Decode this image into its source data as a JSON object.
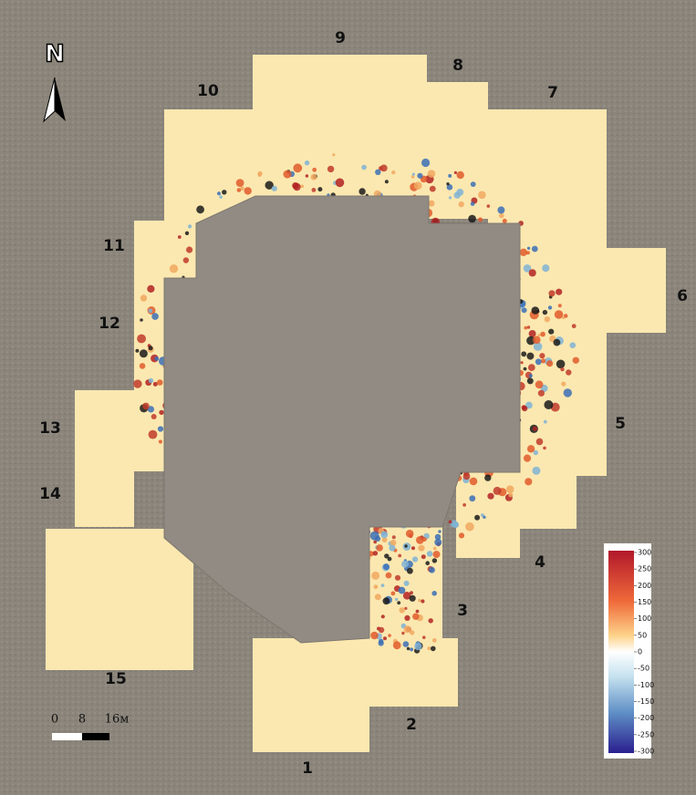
{
  "map": {
    "north": "N",
    "scale": {
      "labels": [
        "0",
        "8",
        "16м"
      ]
    },
    "zones": [
      {
        "label": "1"
      },
      {
        "label": "2"
      },
      {
        "label": "3"
      },
      {
        "label": "4"
      },
      {
        "label": "5"
      },
      {
        "label": "6"
      },
      {
        "label": "7"
      },
      {
        "label": "8"
      },
      {
        "label": "9"
      },
      {
        "label": "10"
      },
      {
        "label": "11"
      },
      {
        "label": "12"
      },
      {
        "label": "13"
      },
      {
        "label": "14"
      },
      {
        "label": "15"
      }
    ],
    "colorbar": {
      "ticks": [
        300,
        250,
        200,
        150,
        100,
        50,
        0,
        -50,
        -100,
        -150,
        -200,
        -250,
        -300
      ]
    }
  }
}
